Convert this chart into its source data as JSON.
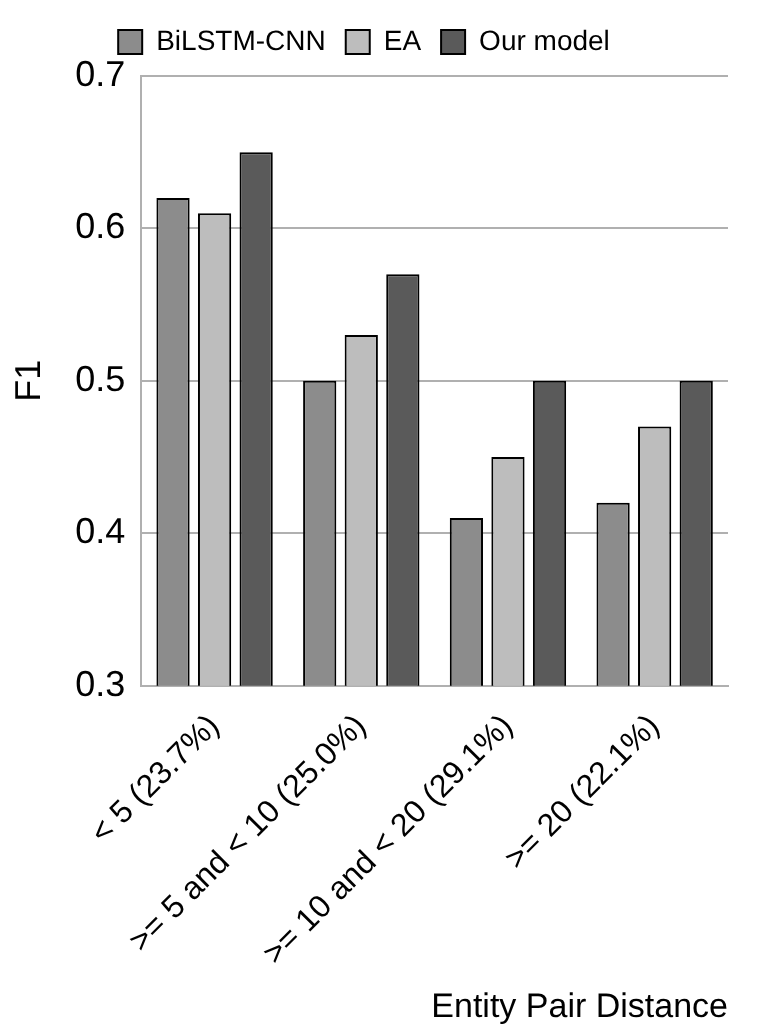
{
  "chart_data": {
    "type": "bar",
    "xlabel": "Entity Pair Distance",
    "ylabel": "F1",
    "categories": [
      "< 5 (23.7%)",
      ">= 5 and < 10 (25.0%)",
      ">= 10 and < 20 (29.1%)",
      ">= 20 (22.1%)"
    ],
    "series": [
      {
        "name": "BiLSTM-CNN",
        "color": "#8c8c8c",
        "values": [
          0.62,
          0.5,
          0.41,
          0.42
        ]
      },
      {
        "name": "EA",
        "color": "#bdbdbd",
        "values": [
          0.61,
          0.53,
          0.45,
          0.47
        ]
      },
      {
        "name": "Our model",
        "color": "#5a5a5a",
        "values": [
          0.65,
          0.57,
          0.5,
          0.5
        ]
      }
    ],
    "ylim": [
      0.3,
      0.7
    ],
    "yticks": [
      0.3,
      0.4,
      0.5,
      0.6,
      0.7
    ],
    "grid": "y",
    "legend": "top"
  }
}
